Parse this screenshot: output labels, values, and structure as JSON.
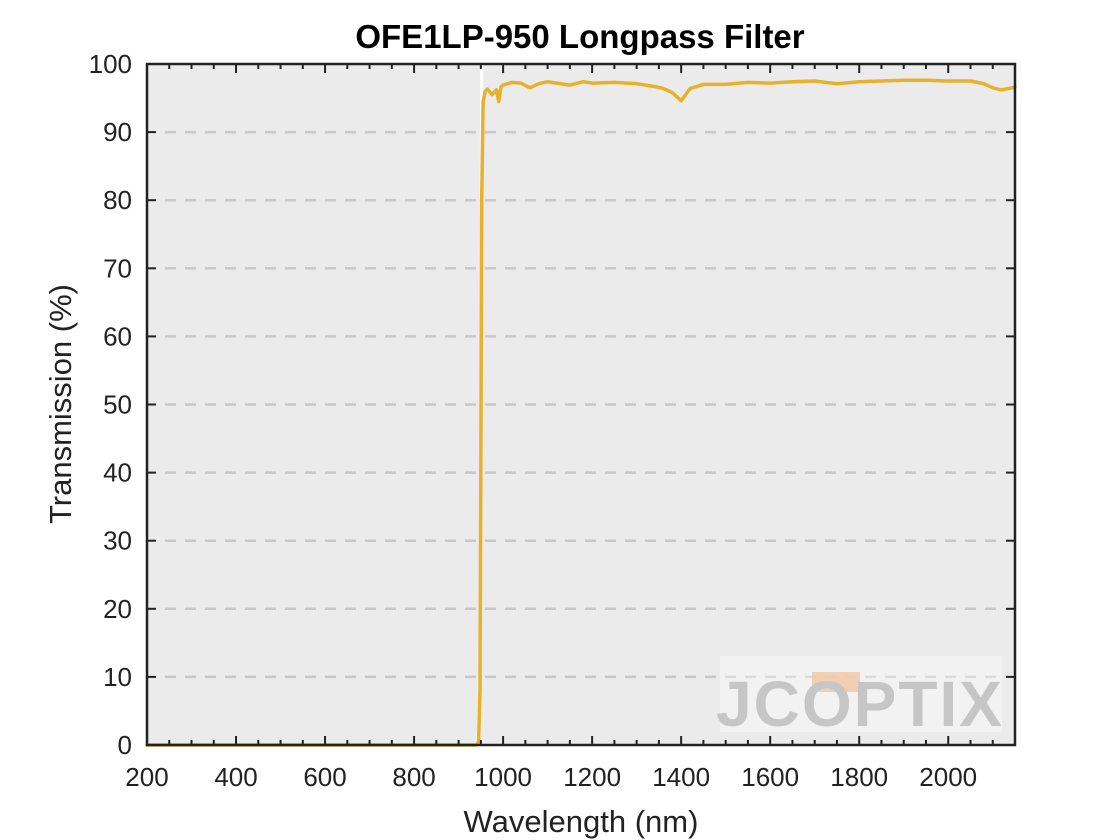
{
  "chart_data": {
    "type": "line",
    "title": "OFE1LP-950 Longpass Filter",
    "xlabel": "Wavelength (nm)",
    "ylabel": "Transmission (%)",
    "xlim": [
      200,
      2150
    ],
    "ylim": [
      0,
      100
    ],
    "xticks": [
      200,
      400,
      600,
      800,
      1000,
      1200,
      1400,
      1600,
      1800,
      2000
    ],
    "yticks": [
      0,
      10,
      20,
      30,
      40,
      50,
      60,
      70,
      80,
      90,
      100
    ],
    "grid": "horizontal dashed",
    "series": [
      {
        "color": "#E8B12A",
        "x": [
          200,
          400,
          600,
          800,
          900,
          940,
          945,
          948,
          950,
          952,
          955,
          960,
          965,
          975,
          985,
          990,
          995,
          1000,
          1020,
          1040,
          1060,
          1080,
          1100,
          1120,
          1150,
          1180,
          1200,
          1250,
          1300,
          1340,
          1360,
          1380,
          1400,
          1420,
          1450,
          1500,
          1550,
          1600,
          1650,
          1700,
          1750,
          1800,
          1850,
          1900,
          1950,
          2000,
          2050,
          2080,
          2100,
          2120,
          2150
        ],
        "y": [
          0,
          0,
          0,
          0,
          0,
          0,
          0.5,
          8,
          40,
          80,
          94.5,
          96,
          96.3,
          95.5,
          96.2,
          94.5,
          96.6,
          96.9,
          97.3,
          97.2,
          96.5,
          97.1,
          97.4,
          97.2,
          96.9,
          97.4,
          97.2,
          97.3,
          97.1,
          96.7,
          96.4,
          95.8,
          94.6,
          96.4,
          97.0,
          97.0,
          97.3,
          97.2,
          97.4,
          97.5,
          97.1,
          97.4,
          97.5,
          97.6,
          97.6,
          97.5,
          97.5,
          97.1,
          96.5,
          96.2,
          96.6
        ]
      },
      {
        "color": "#FFFFFF",
        "x": [
          200,
          600,
          900,
          940,
          945,
          948,
          950,
          951,
          952,
          960,
          975,
          1000
        ],
        "y": [
          0,
          0,
          0,
          0,
          2,
          12,
          45,
          85,
          100,
          100,
          100,
          100
        ]
      }
    ]
  },
  "watermark": {
    "text": "JCOPTIX"
  }
}
